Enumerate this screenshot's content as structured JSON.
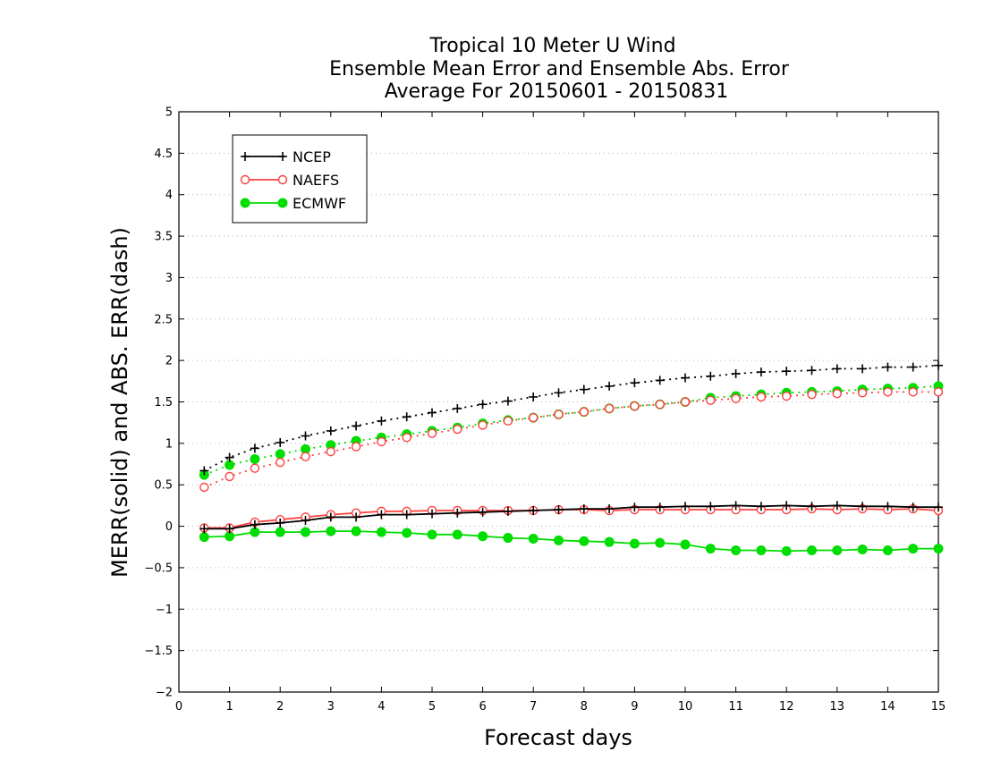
{
  "chart_data": {
    "type": "line",
    "title_lines": [
      "Tropical 10 Meter U Wind",
      "Ensemble Mean Error and Ensemble Abs. Error",
      "Average For 20150601 - 20150831"
    ],
    "xlabel": "Forecast days",
    "ylabel": "MERR(solid) and ABS. ERR(dash)",
    "xlim": [
      0,
      15
    ],
    "ylim": [
      -2,
      5
    ],
    "xticks": [
      0,
      1,
      2,
      3,
      4,
      5,
      6,
      7,
      8,
      9,
      10,
      11,
      12,
      13,
      14,
      15
    ],
    "yticks": [
      -2,
      -1.5,
      -1,
      -0.5,
      0,
      0.5,
      1,
      1.5,
      2,
      2.5,
      3,
      3.5,
      4,
      4.5,
      5
    ],
    "ytick_labels": [
      "−2",
      "−1.5",
      "−1",
      "−0.5",
      "0",
      "0.5",
      "1",
      "1.5",
      "2",
      "2.5",
      "3",
      "3.5",
      "4",
      "4.5",
      "5"
    ],
    "grid": "horizontal dotted",
    "legend_placement": "top-left",
    "x": [
      0.5,
      1,
      1.5,
      2,
      2.5,
      3,
      3.5,
      4,
      4.5,
      5,
      5.5,
      6,
      6.5,
      7,
      7.5,
      8,
      8.5,
      9,
      9.5,
      10,
      10.5,
      11,
      11.5,
      12,
      12.5,
      13,
      13.5,
      14,
      14.5,
      15
    ],
    "series": [
      {
        "name": "NCEP",
        "color": "#000000",
        "marker": "plus",
        "merr": [
          -0.03,
          -0.03,
          0.02,
          0.04,
          0.07,
          0.11,
          0.11,
          0.14,
          0.14,
          0.15,
          0.16,
          0.17,
          0.18,
          0.19,
          0.2,
          0.21,
          0.21,
          0.23,
          0.23,
          0.24,
          0.24,
          0.25,
          0.24,
          0.25,
          0.24,
          0.25,
          0.24,
          0.24,
          0.23,
          0.23
        ],
        "abs_err": [
          0.67,
          0.83,
          0.94,
          1.01,
          1.09,
          1.15,
          1.21,
          1.27,
          1.32,
          1.37,
          1.42,
          1.47,
          1.51,
          1.56,
          1.61,
          1.65,
          1.69,
          1.73,
          1.76,
          1.79,
          1.81,
          1.84,
          1.86,
          1.87,
          1.88,
          1.9,
          1.9,
          1.92,
          1.92,
          1.94
        ]
      },
      {
        "name": "NAEFS",
        "color": "#ff4040",
        "marker": "open-circle",
        "merr": [
          -0.02,
          -0.02,
          0.05,
          0.08,
          0.11,
          0.14,
          0.16,
          0.18,
          0.18,
          0.19,
          0.19,
          0.19,
          0.19,
          0.19,
          0.2,
          0.2,
          0.19,
          0.2,
          0.2,
          0.2,
          0.2,
          0.2,
          0.2,
          0.2,
          0.21,
          0.2,
          0.21,
          0.2,
          0.21,
          0.19
        ],
        "abs_err": [
          0.47,
          0.6,
          0.7,
          0.77,
          0.84,
          0.9,
          0.96,
          1.02,
          1.07,
          1.12,
          1.17,
          1.22,
          1.27,
          1.31,
          1.35,
          1.38,
          1.42,
          1.45,
          1.47,
          1.5,
          1.52,
          1.54,
          1.56,
          1.57,
          1.59,
          1.6,
          1.61,
          1.62,
          1.62,
          1.62
        ]
      },
      {
        "name": "ECMWF",
        "color": "#00dd00",
        "marker": "filled-circle",
        "merr": [
          -0.13,
          -0.12,
          -0.07,
          -0.07,
          -0.07,
          -0.06,
          -0.06,
          -0.07,
          -0.08,
          -0.1,
          -0.1,
          -0.12,
          -0.14,
          -0.15,
          -0.17,
          -0.18,
          -0.19,
          -0.21,
          -0.2,
          -0.22,
          -0.27,
          -0.29,
          -0.29,
          -0.3,
          -0.29,
          -0.29,
          -0.28,
          -0.29,
          -0.27,
          -0.27
        ],
        "abs_err": [
          0.62,
          0.74,
          0.81,
          0.87,
          0.93,
          0.98,
          1.03,
          1.07,
          1.11,
          1.15,
          1.19,
          1.24,
          1.28,
          1.31,
          1.35,
          1.38,
          1.42,
          1.45,
          1.47,
          1.5,
          1.55,
          1.57,
          1.59,
          1.61,
          1.62,
          1.63,
          1.65,
          1.66,
          1.67,
          1.69
        ]
      }
    ]
  }
}
